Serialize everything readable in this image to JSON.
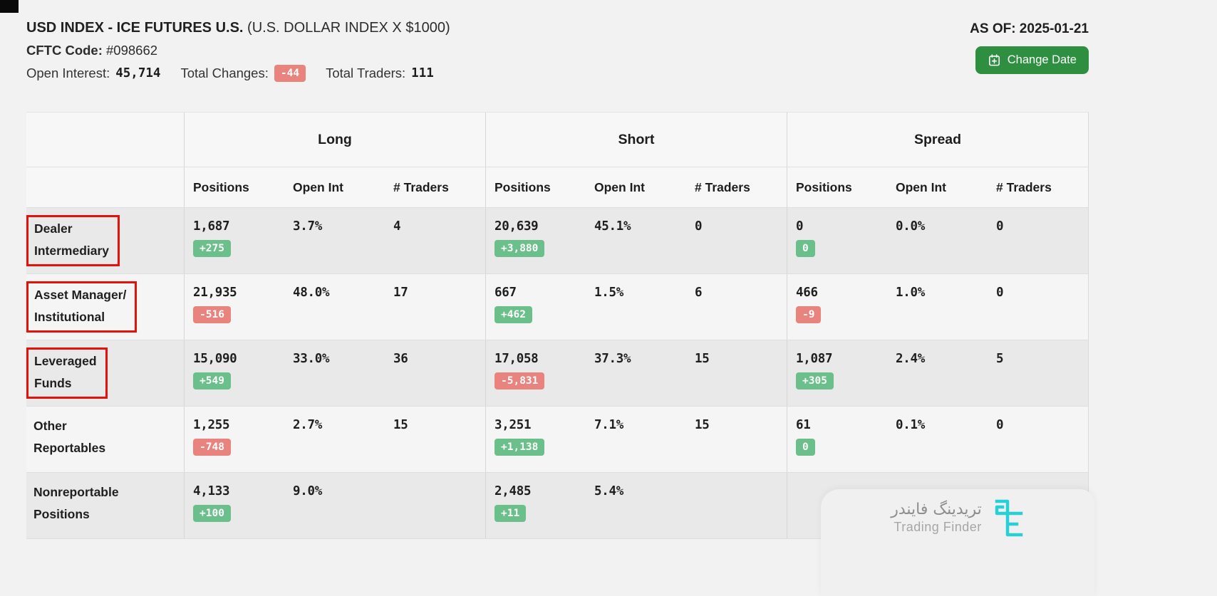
{
  "header": {
    "title_bold": "USD INDEX - ICE FUTURES U.S.",
    "title_normal": "(U.S. DOLLAR INDEX X $1000)",
    "cftc_label": "CFTC Code:",
    "cftc_value": "#098662",
    "open_interest_label": "Open Interest:",
    "open_interest_value": "45,714",
    "total_changes_label": "Total Changes:",
    "total_changes_value": "-44",
    "total_changes_dir": "down",
    "total_traders_label": "Total Traders:",
    "total_traders_value": "111",
    "as_of": "AS OF: 2025-01-21",
    "change_date_button": "Change Date"
  },
  "table": {
    "groups": [
      "Long",
      "Short",
      "Spread"
    ],
    "subheaders": [
      "Positions",
      "Open Int",
      "# Traders"
    ],
    "rows": [
      {
        "label_lines": [
          "Dealer",
          "Intermediary"
        ],
        "highlighted": true,
        "long": {
          "positions": "1,687",
          "change": "+275",
          "change_dir": "up",
          "open_int": "3.7%",
          "traders": "4"
        },
        "short": {
          "positions": "20,639",
          "change": "+3,880",
          "change_dir": "up",
          "open_int": "45.1%",
          "traders": "0"
        },
        "spread": {
          "positions": "0",
          "change": "0",
          "change_dir": "up",
          "open_int": "0.0%",
          "traders": "0"
        }
      },
      {
        "label_lines": [
          "Asset Manager/",
          "Institutional"
        ],
        "highlighted": true,
        "long": {
          "positions": "21,935",
          "change": "-516",
          "change_dir": "down",
          "open_int": "48.0%",
          "traders": "17"
        },
        "short": {
          "positions": "667",
          "change": "+462",
          "change_dir": "up",
          "open_int": "1.5%",
          "traders": "6"
        },
        "spread": {
          "positions": "466",
          "change": "-9",
          "change_dir": "down",
          "open_int": "1.0%",
          "traders": "0"
        }
      },
      {
        "label_lines": [
          "Leveraged",
          "Funds"
        ],
        "highlighted": true,
        "long": {
          "positions": "15,090",
          "change": "+549",
          "change_dir": "up",
          "open_int": "33.0%",
          "traders": "36"
        },
        "short": {
          "positions": "17,058",
          "change": "-5,831",
          "change_dir": "down",
          "open_int": "37.3%",
          "traders": "15"
        },
        "spread": {
          "positions": "1,087",
          "change": "+305",
          "change_dir": "up",
          "open_int": "2.4%",
          "traders": "5"
        }
      },
      {
        "label_lines": [
          "Other",
          "Reportables"
        ],
        "highlighted": false,
        "long": {
          "positions": "1,255",
          "change": "-748",
          "change_dir": "down",
          "open_int": "2.7%",
          "traders": "15"
        },
        "short": {
          "positions": "3,251",
          "change": "+1,138",
          "change_dir": "up",
          "open_int": "7.1%",
          "traders": "15"
        },
        "spread": {
          "positions": "61",
          "change": "0",
          "change_dir": "up",
          "open_int": "0.1%",
          "traders": "0"
        }
      },
      {
        "label_lines": [
          "Nonreportable",
          "Positions"
        ],
        "highlighted": false,
        "long": {
          "positions": "4,133",
          "change": "+100",
          "change_dir": "up",
          "open_int": "9.0%",
          "traders": ""
        },
        "short": {
          "positions": "2,485",
          "change": "+11",
          "change_dir": "up",
          "open_int": "5.4%",
          "traders": ""
        },
        "spread": {
          "positions": "",
          "change": "",
          "change_dir": "",
          "open_int": "",
          "traders": ""
        }
      }
    ]
  },
  "watermark": {
    "brand_fa": "تریدینگ فایندر",
    "brand_en": "Trading Finder"
  },
  "colors": {
    "badge_green": "#6abf8a",
    "badge_red": "#e8837e",
    "button_green": "#2e8f41",
    "highlight_red": "#e3120b",
    "logo_cyan": "#26d0d4"
  }
}
